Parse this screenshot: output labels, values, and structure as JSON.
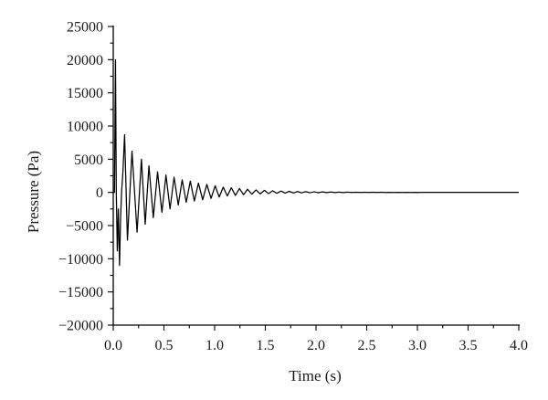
{
  "chart_data": {
    "type": "line",
    "title": "",
    "xlabel": "Time (s)",
    "ylabel": "Pressure (Pa)",
    "xlim": [
      0,
      4.0
    ],
    "ylim": [
      -20000,
      25000
    ],
    "xticks": [
      0.0,
      0.5,
      1.0,
      1.5,
      2.0,
      2.5,
      3.0,
      3.5,
      4.0
    ],
    "xtick_labels": [
      "0.0",
      "0.5",
      "1.0",
      "1.5",
      "2.0",
      "2.5",
      "3.0",
      "3.5",
      "4.0"
    ],
    "yticks": [
      25000,
      20000,
      15000,
      10000,
      5000,
      0,
      -5000,
      -10000,
      -15000,
      -20000
    ],
    "ytick_labels": [
      "25000",
      "20000",
      "15000",
      "10000",
      "5000",
      "0",
      "−5000",
      "−10000",
      "−15000",
      "−20000"
    ],
    "grid": false,
    "legend": "none",
    "series": [
      {
        "color": "#000000",
        "x": [
          0.0,
          0.012,
          0.022,
          0.03,
          0.04,
          0.05,
          0.062,
          0.072,
          0.082,
          0.095,
          0.112,
          0.14,
          0.185,
          0.235,
          0.278,
          0.315,
          0.352,
          0.395,
          0.437,
          0.48,
          0.52,
          0.56,
          0.6,
          0.641,
          0.68,
          0.72,
          0.76,
          0.8,
          0.84,
          0.882,
          0.923,
          0.965,
          1.005,
          1.045,
          1.085,
          1.125,
          1.165,
          1.205,
          1.245,
          1.285,
          1.325,
          1.367,
          1.408,
          1.45,
          1.492,
          1.532,
          1.572,
          1.613,
          1.655,
          1.695,
          1.736,
          1.778,
          1.818,
          1.858,
          1.898,
          1.94,
          1.982,
          2.022,
          2.064,
          2.105,
          2.146,
          2.187,
          2.228,
          2.27,
          2.311,
          2.352,
          2.394,
          2.436,
          2.476,
          2.518,
          2.56,
          2.6,
          2.642,
          2.682,
          2.724,
          2.766,
          2.808,
          2.85,
          2.892,
          2.934,
          2.976,
          3.018,
          3.06,
          3.102,
          3.144,
          3.186,
          3.228,
          3.27,
          3.312,
          3.354,
          3.396,
          3.438,
          3.48,
          3.522,
          3.564,
          3.606,
          3.648,
          3.69,
          3.732,
          3.774,
          3.816,
          3.858,
          3.9,
          3.942,
          3.984,
          4.0
        ],
        "y": [
          0,
          0,
          20000,
          0,
          -8800,
          -2500,
          -11000,
          -4000,
          0,
          3000,
          8700,
          -7200,
          6200,
          -6000,
          5000,
          -4800,
          4000,
          -3800,
          3100,
          -3000,
          2600,
          -2500,
          2300,
          -1900,
          1900,
          -1500,
          1700,
          -1300,
          1400,
          -1100,
          1200,
          -900,
          1000,
          -700,
          800,
          -550,
          700,
          -450,
          580,
          -350,
          470,
          -270,
          380,
          -220,
          310,
          -180,
          250,
          -140,
          200,
          -110,
          160,
          -90,
          130,
          -70,
          105,
          -55,
          85,
          -45,
          70,
          -35,
          55,
          -28,
          45,
          -22,
          36,
          -18,
          29,
          -14,
          23,
          -11,
          18,
          -9,
          14,
          -7,
          11,
          -5,
          9,
          -4,
          7,
          -3,
          6,
          -3,
          5,
          -2,
          4,
          -2,
          3,
          -1,
          2,
          -1,
          2,
          -1,
          1,
          -1,
          1,
          0,
          1,
          0,
          0,
          0,
          0,
          0,
          0,
          0,
          0,
          0
        ]
      }
    ]
  }
}
